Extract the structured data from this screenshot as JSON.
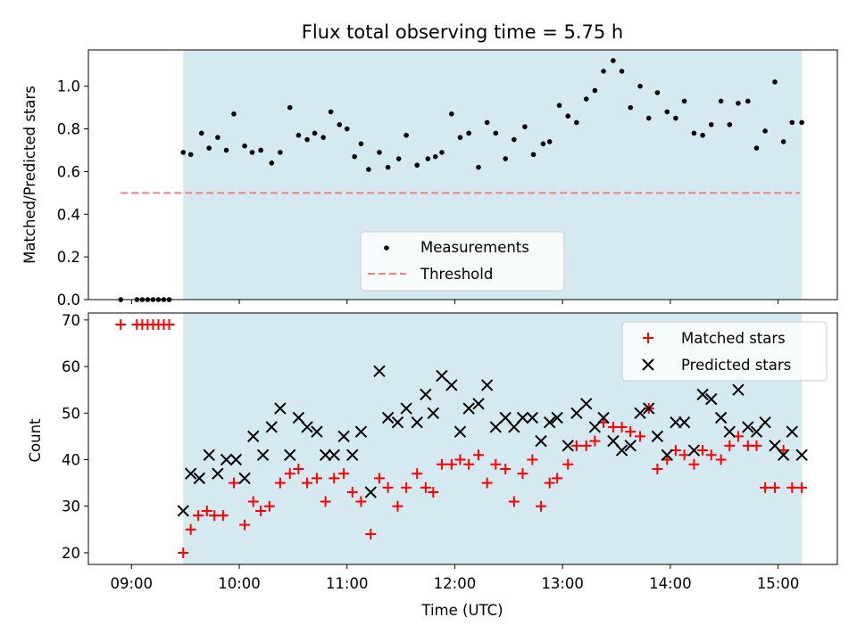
{
  "chart_data": {
    "title": "Flux total observing time = 5.75 h",
    "xlabel": "Time (UTC)",
    "xticks": [
      "09:00",
      "10:00",
      "11:00",
      "12:00",
      "13:00",
      "14:00",
      "15:00"
    ],
    "xlim_hours": [
      8.6,
      15.55
    ],
    "shaded_span_hours": [
      9.48,
      15.22
    ],
    "shade_color": "#d4eaf0",
    "panels": [
      {
        "type": "scatter",
        "ylabel": "Matched/Predicted stars",
        "ylim": [
          0.0,
          1.17
        ],
        "yticks": [
          "0.0",
          "0.2",
          "0.4",
          "0.6",
          "0.8",
          "1.0"
        ],
        "legend_position": "lower-center",
        "threshold": {
          "name": "Threshold",
          "value": 0.5,
          "x_range": [
            8.9,
            15.2
          ],
          "color": "#f08080"
        },
        "series": [
          {
            "name": "Measurements",
            "color": "#000000",
            "marker": "dot",
            "x": [
              8.9,
              9.05,
              9.1,
              9.15,
              9.2,
              9.25,
              9.3,
              9.35,
              9.48,
              9.55,
              9.65,
              9.72,
              9.8,
              9.88,
              9.95,
              10.05,
              10.12,
              10.2,
              10.3,
              10.38,
              10.47,
              10.55,
              10.63,
              10.7,
              10.78,
              10.85,
              10.93,
              11.0,
              11.07,
              11.13,
              11.2,
              11.3,
              11.38,
              11.48,
              11.55,
              11.65,
              11.75,
              11.82,
              11.88,
              11.97,
              12.05,
              12.13,
              12.22,
              12.3,
              12.38,
              12.47,
              12.55,
              12.65,
              12.73,
              12.82,
              12.88,
              12.97,
              13.05,
              13.13,
              13.22,
              13.3,
              13.38,
              13.47,
              13.55,
              13.63,
              13.72,
              13.8,
              13.88,
              13.97,
              14.05,
              14.13,
              14.22,
              14.3,
              14.38,
              14.47,
              14.55,
              14.63,
              14.72,
              14.8,
              14.88,
              14.97,
              15.05,
              15.13,
              15.22
            ],
            "y": [
              0.0,
              0.0,
              0.0,
              0.0,
              0.0,
              0.0,
              0.0,
              0.0,
              0.69,
              0.68,
              0.78,
              0.71,
              0.76,
              0.7,
              0.87,
              0.72,
              0.69,
              0.7,
              0.64,
              0.69,
              0.9,
              0.77,
              0.75,
              0.78,
              0.76,
              0.88,
              0.82,
              0.8,
              0.67,
              0.73,
              0.61,
              0.69,
              0.62,
              0.66,
              0.77,
              0.63,
              0.66,
              0.67,
              0.69,
              0.87,
              0.76,
              0.78,
              0.62,
              0.83,
              0.78,
              0.66,
              0.75,
              0.81,
              0.68,
              0.73,
              0.74,
              0.91,
              0.86,
              0.83,
              0.94,
              0.98,
              1.07,
              1.12,
              1.07,
              0.9,
              1.0,
              0.85,
              0.97,
              0.88,
              0.85,
              0.93,
              0.78,
              0.77,
              0.82,
              0.93,
              0.82,
              0.92,
              0.93,
              0.71,
              0.79,
              1.02,
              0.74,
              0.83,
              0.83
            ]
          }
        ]
      },
      {
        "type": "scatter",
        "ylabel": "Count",
        "ylim": [
          17.5,
          71.5
        ],
        "yticks": [
          "20",
          "30",
          "40",
          "50",
          "60",
          "70"
        ],
        "legend_position": "top-right",
        "series": [
          {
            "name": "Matched stars",
            "color": "#ff0000",
            "marker": "plus",
            "x": [
              8.9,
              9.05,
              9.1,
              9.15,
              9.2,
              9.25,
              9.3,
              9.35,
              9.48,
              9.55,
              9.62,
              9.7,
              9.77,
              9.85,
              9.95,
              10.05,
              10.13,
              10.2,
              10.28,
              10.38,
              10.47,
              10.55,
              10.63,
              10.72,
              10.8,
              10.88,
              10.97,
              11.05,
              11.13,
              11.22,
              11.3,
              11.38,
              11.47,
              11.55,
              11.65,
              11.73,
              11.8,
              11.88,
              11.97,
              12.05,
              12.13,
              12.22,
              12.3,
              12.38,
              12.47,
              12.55,
              12.63,
              12.72,
              12.8,
              12.88,
              12.95,
              13.05,
              13.13,
              13.22,
              13.3,
              13.38,
              13.47,
              13.55,
              13.63,
              13.72,
              13.8,
              13.88,
              13.97,
              14.05,
              14.13,
              14.22,
              14.3,
              14.38,
              14.47,
              14.55,
              14.63,
              14.72,
              14.8,
              14.88,
              14.97,
              15.05,
              15.13,
              15.22
            ],
            "y": [
              69,
              69,
              69,
              69,
              69,
              69,
              69,
              69,
              20,
              25,
              28,
              29,
              28,
              28,
              35,
              26,
              31,
              29,
              30,
              35,
              37,
              38,
              35,
              36,
              31,
              36,
              37,
              33,
              31,
              24,
              36,
              34,
              30,
              34,
              37,
              34,
              33,
              39,
              39,
              40,
              39,
              41,
              35,
              39,
              38,
              31,
              37,
              40,
              30,
              35,
              36,
              39,
              43,
              43,
              44,
              48,
              47,
              47,
              46,
              45,
              51,
              38,
              40,
              42,
              41,
              39,
              42,
              41,
              40,
              43,
              45,
              43,
              43,
              34,
              34,
              42,
              34,
              34
            ]
          },
          {
            "name": "Predicted stars",
            "color": "#000000",
            "marker": "x",
            "x": [
              9.48,
              9.55,
              9.63,
              9.72,
              9.8,
              9.88,
              9.97,
              10.05,
              10.13,
              10.22,
              10.3,
              10.38,
              10.47,
              10.55,
              10.63,
              10.72,
              10.8,
              10.88,
              10.97,
              11.05,
              11.13,
              11.22,
              11.3,
              11.38,
              11.47,
              11.55,
              11.65,
              11.73,
              11.8,
              11.88,
              11.97,
              12.05,
              12.13,
              12.22,
              12.3,
              12.38,
              12.47,
              12.55,
              12.63,
              12.72,
              12.8,
              12.88,
              12.95,
              13.05,
              13.13,
              13.22,
              13.3,
              13.38,
              13.47,
              13.55,
              13.63,
              13.72,
              13.8,
              13.88,
              13.97,
              14.05,
              14.13,
              14.22,
              14.3,
              14.38,
              14.47,
              14.55,
              14.63,
              14.72,
              14.8,
              14.88,
              14.97,
              15.05,
              15.13,
              15.22
            ],
            "y": [
              29,
              37,
              36,
              41,
              37,
              40,
              40,
              36,
              45,
              41,
              47,
              51,
              41,
              49,
              47,
              46,
              41,
              41,
              45,
              41,
              46,
              33,
              59,
              49,
              48,
              51,
              48,
              54,
              50,
              58,
              56,
              46,
              51,
              52,
              56,
              47,
              49,
              47,
              49,
              49,
              44,
              48,
              49,
              43,
              50,
              52,
              47,
              49,
              44,
              42,
              43,
              50,
              51,
              45,
              41,
              48,
              48,
              42,
              54,
              53,
              49,
              46,
              55,
              47,
              46,
              48,
              43,
              41,
              46,
              41
            ]
          }
        ]
      }
    ]
  }
}
